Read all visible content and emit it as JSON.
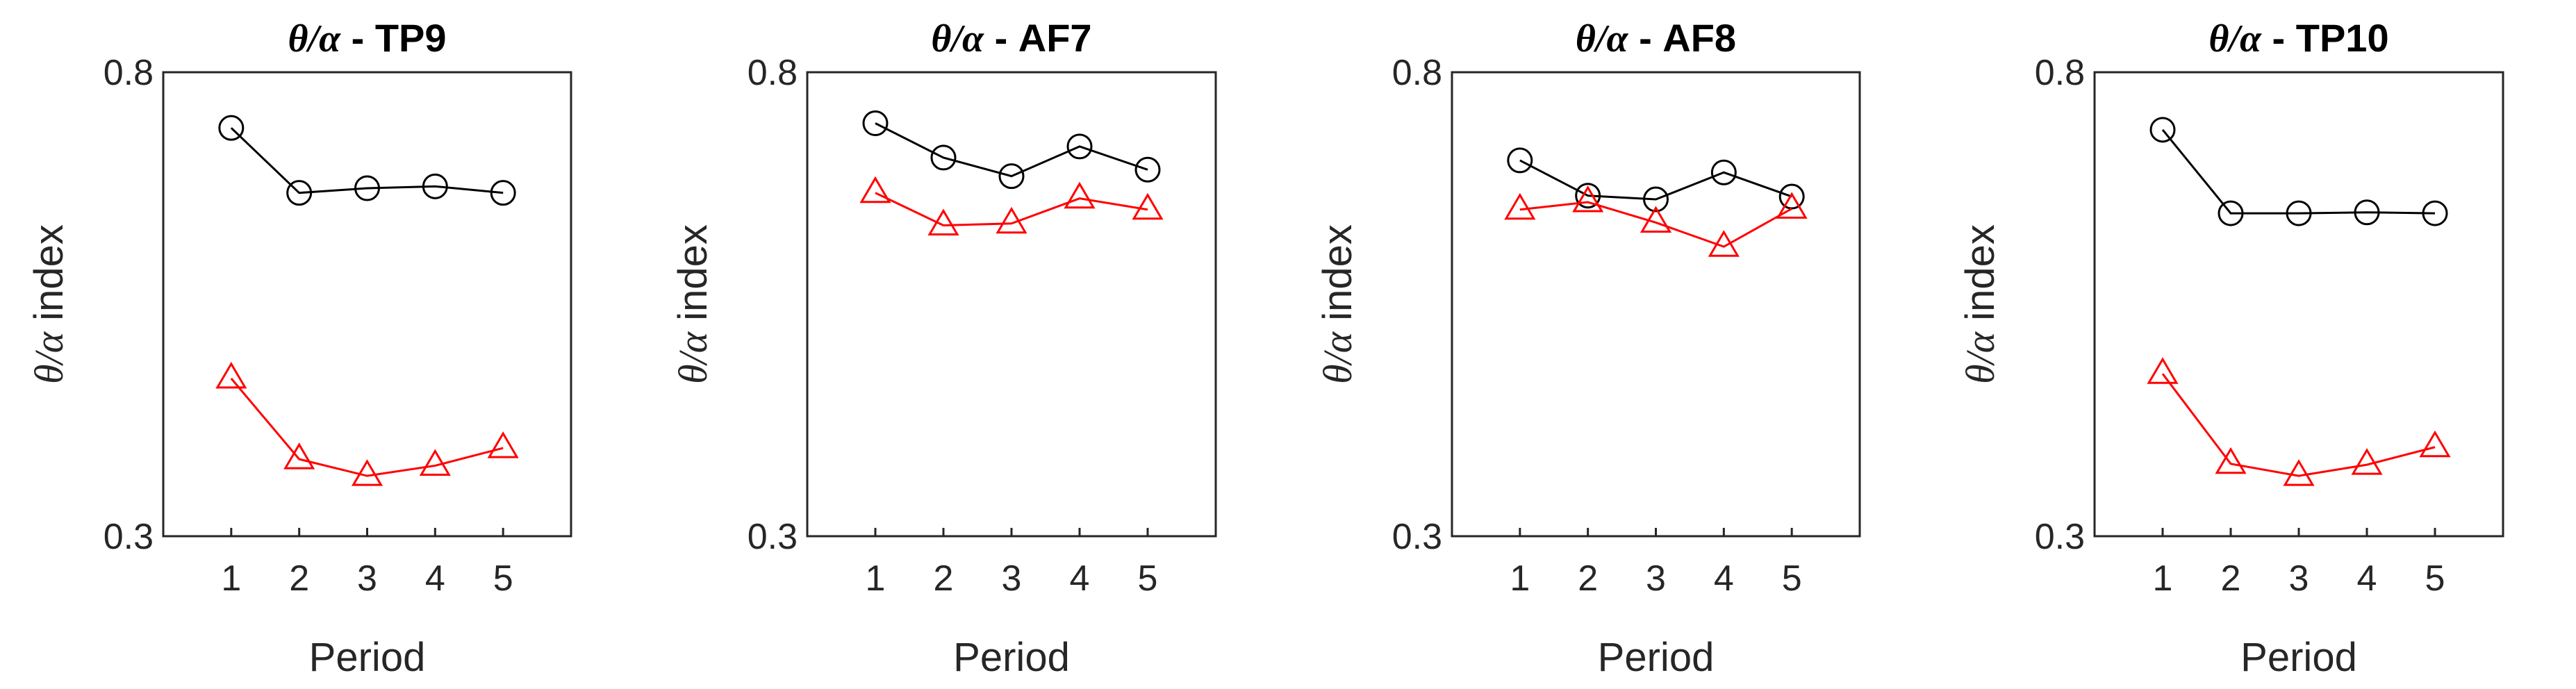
{
  "chart_data": [
    {
      "type": "line",
      "title_symbol": "θ/α",
      "title_channel": " - TP9",
      "xlabel": "Period",
      "ylabel_symbol": "θ/α",
      "ylabel_text": " index",
      "x": [
        1,
        2,
        3,
        4,
        5
      ],
      "xlim": [
        0,
        6
      ],
      "ylim": [
        0.3,
        0.8
      ],
      "yticks": [
        "0.3",
        "0.8"
      ],
      "xticks": [
        "1",
        "2",
        "3",
        "4",
        "5"
      ],
      "series": [
        {
          "name": "circle-series",
          "marker": "circle",
          "color": "#000000",
          "values": [
            0.74,
            0.67,
            0.675,
            0.677,
            0.67
          ]
        },
        {
          "name": "triangle-series",
          "marker": "triangle",
          "color": "#ff0000",
          "values": [
            0.47,
            0.383,
            0.365,
            0.376,
            0.395
          ]
        }
      ]
    },
    {
      "type": "line",
      "title_symbol": "θ/α",
      "title_channel": " - AF7",
      "xlabel": "Period",
      "ylabel_symbol": "θ/α",
      "ylabel_text": " index",
      "x": [
        1,
        2,
        3,
        4,
        5
      ],
      "xlim": [
        0,
        6
      ],
      "ylim": [
        0.3,
        0.8
      ],
      "yticks": [
        "0.3",
        "0.8"
      ],
      "xticks": [
        "1",
        "2",
        "3",
        "4",
        "5"
      ],
      "series": [
        {
          "name": "circle-series",
          "marker": "circle",
          "color": "#000000",
          "values": [
            0.745,
            0.708,
            0.688,
            0.72,
            0.695
          ]
        },
        {
          "name": "triangle-series",
          "marker": "triangle",
          "color": "#ff0000",
          "values": [
            0.67,
            0.635,
            0.637,
            0.664,
            0.652
          ]
        }
      ]
    },
    {
      "type": "line",
      "title_symbol": "θ/α",
      "title_channel": " - AF8",
      "xlabel": "Period",
      "ylabel_symbol": "θ/α",
      "ylabel_text": " index",
      "x": [
        1,
        2,
        3,
        4,
        5
      ],
      "xlim": [
        0,
        6
      ],
      "ylim": [
        0.3,
        0.8
      ],
      "yticks": [
        "0.3",
        "0.8"
      ],
      "xticks": [
        "1",
        "2",
        "3",
        "4",
        "5"
      ],
      "series": [
        {
          "name": "circle-series",
          "marker": "circle",
          "color": "#000000",
          "values": [
            0.705,
            0.667,
            0.663,
            0.692,
            0.666
          ]
        },
        {
          "name": "triangle-series",
          "marker": "triangle",
          "color": "#ff0000",
          "values": [
            0.652,
            0.66,
            0.638,
            0.612,
            0.653
          ]
        }
      ]
    },
    {
      "type": "line",
      "title_symbol": "θ/α",
      "title_channel": " - TP10",
      "xlabel": "Period",
      "ylabel_symbol": "θ/α",
      "ylabel_text": " index",
      "x": [
        1,
        2,
        3,
        4,
        5
      ],
      "xlim": [
        0,
        6
      ],
      "ylim": [
        0.3,
        0.8
      ],
      "yticks": [
        "0.3",
        "0.8"
      ],
      "xticks": [
        "1",
        "2",
        "3",
        "4",
        "5"
      ],
      "series": [
        {
          "name": "circle-series",
          "marker": "circle",
          "color": "#000000",
          "values": [
            0.738,
            0.648,
            0.648,
            0.649,
            0.648
          ]
        },
        {
          "name": "triangle-series",
          "marker": "triangle",
          "color": "#ff0000",
          "values": [
            0.475,
            0.378,
            0.365,
            0.377,
            0.396
          ]
        }
      ]
    }
  ]
}
